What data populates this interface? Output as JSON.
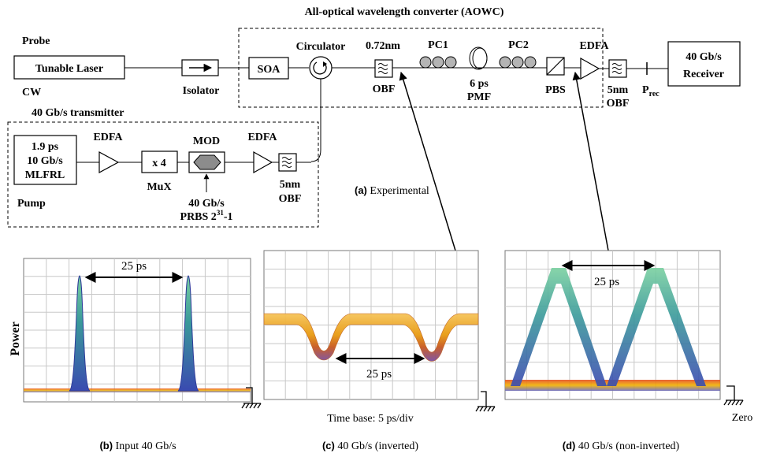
{
  "aowc_title": "All-optical wavelength converter (AOWC)",
  "probe": {
    "label": "Probe",
    "laser": "Tunable Laser",
    "cw": "CW"
  },
  "isolator": "Isolator",
  "soa": "SOA",
  "circulator": "Circulator",
  "obf1": {
    "bw": "0.72nm",
    "label": "OBF"
  },
  "pc1": "PC1",
  "pmf": {
    "line1": "6 ps",
    "line2": "PMF"
  },
  "pc2": "PC2",
  "pbs": "PBS",
  "edfa": "EDFA",
  "obf_out": {
    "bw": "5nm",
    "label": "OBF"
  },
  "prec": {
    "main": "P",
    "sub": "rec"
  },
  "receiver": {
    "line1": "40 Gb/s",
    "line2": "Receiver"
  },
  "transmitter": {
    "title": "40 Gb/s transmitter",
    "mlfrl": [
      "1.9 ps",
      "10 Gb/s",
      "MLFRL"
    ],
    "pump": "Pump",
    "edfa1": "EDFA",
    "mux": {
      "box": "x 4",
      "label": "MuX"
    },
    "mod": "MOD",
    "prbs": {
      "line1": "40 Gb/s",
      "line2": "PRBS 2",
      "exp": "31",
      "tail": "-1"
    },
    "edfa2": "EDFA",
    "obf": {
      "bw": "5nm",
      "label": "OBF"
    }
  },
  "caption_a": {
    "tag": "(a)",
    "text": " Experimental"
  },
  "panels": {
    "b": {
      "interval": "25 ps",
      "ylabel": "Power",
      "tag": "(b)",
      "caption": " Input 40 Gb/s"
    },
    "c": {
      "interval": "25 ps",
      "timebase": "Time base: 5 ps/div",
      "tag": "(c)",
      "caption": " 40 Gb/s (inverted)"
    },
    "d": {
      "interval": "25 ps",
      "zero": "Zero",
      "tag": "(d)",
      "caption": " 40 Gb/s (non-inverted)"
    }
  },
  "colors": {
    "grid": "#c8c8c8",
    "pulse_blue": "#3a4ab0",
    "trace_orange": "#f0a000",
    "trace_green": "#6ac48a"
  }
}
